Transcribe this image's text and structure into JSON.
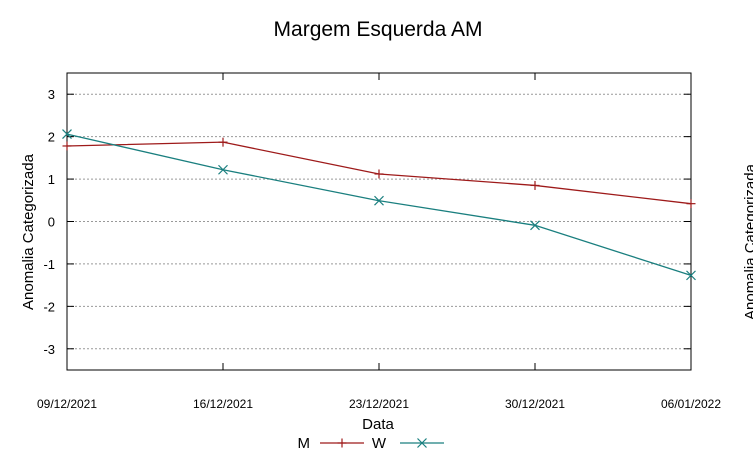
{
  "chart_data": {
    "type": "line",
    "title": "Margem Esquerda AM",
    "xlabel": "Data",
    "ylabel": "Anomalia Categorizada",
    "right_ylabel": "Anomalia Categorizada",
    "categories": [
      "09/12/2021",
      "16/12/2021",
      "23/12/2021",
      "30/12/2021",
      "06/01/2022"
    ],
    "ylim": [
      -3.5,
      3.5
    ],
    "yticks": [
      "3",
      "2",
      "1",
      "0",
      "-1",
      "-2",
      "-3"
    ],
    "ytick_values": [
      3,
      2,
      1,
      0,
      -1,
      -2,
      -3
    ],
    "grid": true,
    "legend_position": "bottom-center",
    "series": [
      {
        "name": "M",
        "color": "#9e1a1a",
        "marker": "plus",
        "values": [
          1.78,
          1.87,
          1.12,
          0.85,
          0.42
        ]
      },
      {
        "name": "W",
        "color": "#1a7f7f",
        "marker": "x",
        "values": [
          2.06,
          1.22,
          0.49,
          -0.09,
          -1.27
        ]
      }
    ]
  }
}
